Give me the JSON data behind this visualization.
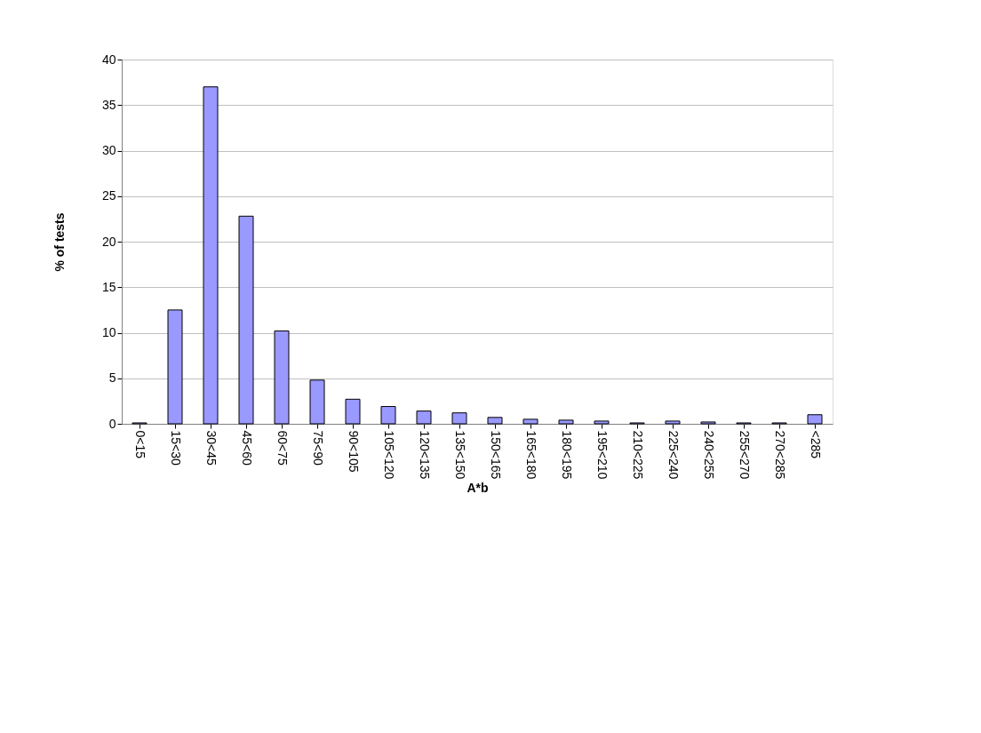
{
  "chart_data": {
    "type": "bar",
    "xlabel": "A*b",
    "ylabel": "% of tests",
    "categories": [
      "0<15",
      "15<30",
      "30<45",
      "45<60",
      "60<75",
      "75<90",
      "90<105",
      "105<120",
      "120<135",
      "135<150",
      "150<165",
      "165<180",
      "180<195",
      "195<210",
      "210<225",
      "225<240",
      "240<255",
      "255<270",
      "270<285",
      "<285"
    ],
    "values": [
      0.1,
      12.5,
      37.0,
      22.8,
      10.2,
      4.8,
      2.7,
      1.9,
      1.4,
      1.2,
      0.7,
      0.5,
      0.4,
      0.3,
      0.1,
      0.3,
      0.2,
      0.1,
      0.1,
      1.0
    ],
    "color": "#9999ff",
    "ylim": [
      0,
      40
    ],
    "yticks": [
      0,
      5,
      10,
      15,
      20,
      25,
      30,
      35,
      40
    ],
    "grid": "y"
  }
}
